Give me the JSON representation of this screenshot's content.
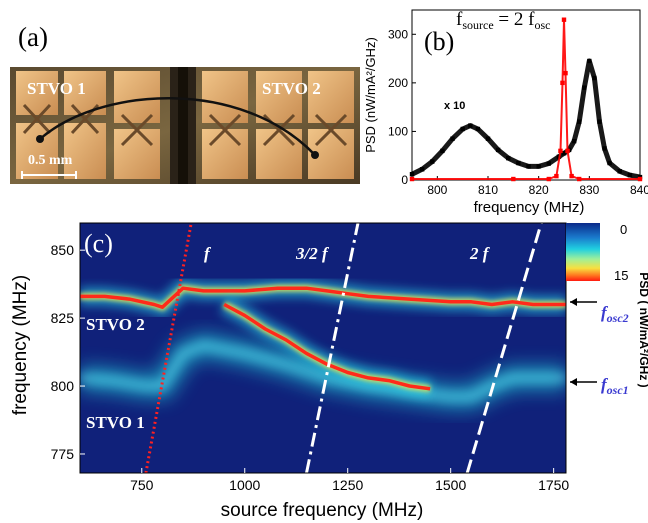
{
  "panel_a": {
    "label": "(a)",
    "stvo1_label": "STVO 1",
    "stvo2_label": "STVO 2",
    "scalebar_label": "0.5 mm"
  },
  "panel_b": {
    "label": "(b)",
    "annotation_base": "f",
    "annotation_sub1": "source",
    "annotation_mid": " = 2 f",
    "annotation_sub2": "osc",
    "x10_label": "x 10"
  },
  "panel_c": {
    "label": "(c)",
    "colorbar_title": "PSD ( nW/mA²/GHz )",
    "colorbar_ticks": [
      "0",
      "15"
    ],
    "harmonic_labels": [
      "f",
      "3/2 f",
      "2 f"
    ],
    "stvo2_label": "STVO 2",
    "stvo1_label": "STVO 1",
    "fosc2_base": "f",
    "fosc2_sub": "osc2",
    "fosc1_base": "f",
    "fosc1_sub": "osc1",
    "colors": {
      "background": "#10217a",
      "ridge": "#ff2a1a",
      "cyan": "#20d8e0"
    }
  },
  "chart_data": [
    {
      "type": "scatter",
      "xlabel": "frequency (MHz)",
      "ylabel": "PSD (nW/mA²/GHz)",
      "xlim": [
        795,
        840
      ],
      "ylim": [
        0,
        350
      ],
      "xticks": [
        800,
        810,
        820,
        830,
        840
      ],
      "yticks": [
        0,
        100,
        200,
        300
      ],
      "series": [
        {
          "color": "#000000",
          "x": [
            795,
            797,
            799,
            801,
            803,
            805,
            806.5,
            808,
            810,
            812,
            814,
            816,
            818,
            820,
            822,
            824,
            825,
            826,
            827,
            828,
            829,
            830,
            831,
            832,
            833,
            834,
            836,
            838,
            840
          ],
          "y": [
            12,
            22,
            38,
            60,
            85,
            105,
            112,
            105,
            85,
            62,
            45,
            35,
            28,
            28,
            34,
            48,
            55,
            62,
            80,
            120,
            190,
            245,
            210,
            120,
            65,
            35,
            18,
            10,
            6
          ]
        },
        {
          "color": "#ff0000",
          "x": [
            795,
            815,
            822,
            823.5,
            824.3,
            824.7,
            825,
            825.3,
            825.7,
            826.5,
            828,
            840
          ],
          "y": [
            2,
            2,
            2,
            8,
            60,
            200,
            330,
            220,
            60,
            8,
            2,
            2
          ]
        }
      ]
    },
    {
      "type": "heatmap",
      "xlabel": "source frequency (MHz)",
      "ylabel": "frequency (MHz)",
      "xlim": [
        600,
        1780
      ],
      "ylim": [
        768,
        860
      ],
      "xticks": [
        750,
        1000,
        1250,
        1500,
        1750
      ],
      "yticks": [
        775,
        800,
        825,
        850
      ],
      "colorbar_range": [
        0,
        15
      ],
      "series": [
        {
          "style": "red dotted",
          "x": [
            760,
            870
          ],
          "y": [
            768,
            860
          ]
        },
        {
          "style": "white dash-dot",
          "x": [
            1150,
            1275
          ],
          "y": [
            768,
            860
          ]
        },
        {
          "style": "white dashed",
          "x": [
            1540,
            1720
          ],
          "y": [
            768,
            860
          ]
        },
        {
          "intensity": "high",
          "x": [
            600,
            660,
            720,
            780,
            800,
            850,
            900,
            960,
            1000,
            1080,
            1150,
            1200,
            1250,
            1300,
            1400,
            1500,
            1550,
            1600,
            1650,
            1700,
            1780
          ],
          "y": [
            833,
            833,
            832,
            830,
            829,
            836,
            835,
            835,
            835,
            836,
            836,
            835,
            834,
            833,
            832,
            831,
            831,
            830,
            831,
            830,
            830
          ]
        },
        {
          "intensity": "high",
          "x": [
            950,
            1000,
            1050,
            1100,
            1150,
            1200,
            1250,
            1300,
            1350,
            1400,
            1450
          ],
          "y": [
            830,
            826,
            821,
            817,
            812,
            808,
            805,
            803,
            802,
            800,
            799
          ]
        },
        {
          "intensity": "medium",
          "x": [
            600,
            680,
            760,
            800,
            850,
            900,
            1000,
            1100,
            1200,
            1300,
            1400,
            1500,
            1550,
            1600,
            1650,
            1700,
            1780
          ],
          "y": [
            803,
            802,
            800,
            800,
            812,
            815,
            812,
            808,
            803,
            800,
            798,
            796,
            796,
            800,
            803,
            803,
            803
          ]
        }
      ]
    }
  ]
}
